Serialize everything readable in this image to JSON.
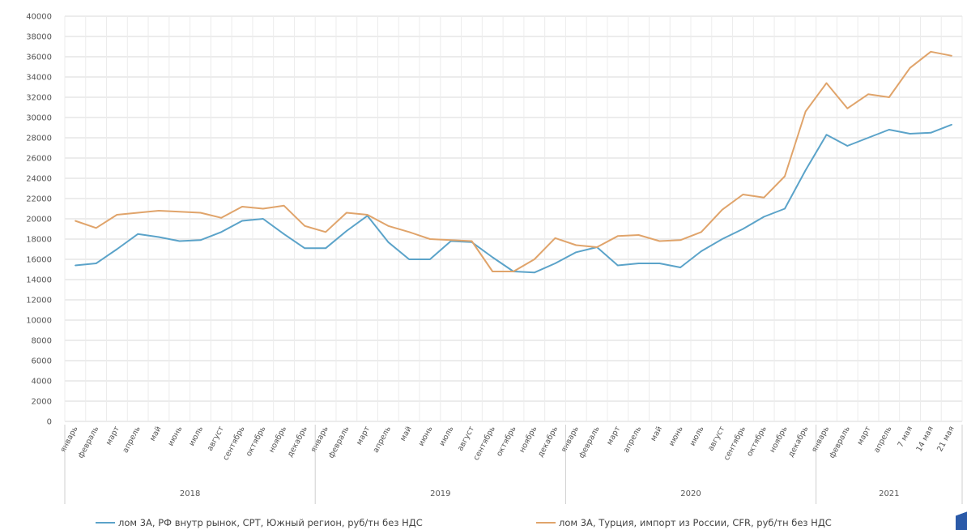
{
  "chart_data": {
    "type": "line",
    "title": "",
    "xlabel": "",
    "ylabel": "",
    "ylim": [
      0,
      40000
    ],
    "yticks": [
      0,
      2000,
      4000,
      6000,
      8000,
      10000,
      12000,
      14000,
      16000,
      18000,
      20000,
      22000,
      24000,
      26000,
      28000,
      30000,
      32000,
      34000,
      36000,
      38000,
      40000
    ],
    "grid": true,
    "legend_position": "bottom",
    "categories": [
      "январь",
      "февраль",
      "март",
      "апрель",
      "май",
      "июнь",
      "июль",
      "август",
      "сентябрь",
      "октябрь",
      "ноябрь",
      "декабрь",
      "январь",
      "февраль",
      "март",
      "апрель",
      "май",
      "июнь",
      "июль",
      "август",
      "сентябрь",
      "октябрь",
      "ноябрь",
      "декабрь",
      "январь",
      "февраль",
      "март",
      "апрель",
      "май",
      "июнь",
      "июль",
      "август",
      "сентябрь",
      "октябрь",
      "ноябрь",
      "декабрь",
      "январь",
      "февраль",
      "март",
      "апрель",
      "7 мая",
      "14 мая",
      "21 мая"
    ],
    "years": [
      {
        "label": "2018",
        "start": 0,
        "end": 11
      },
      {
        "label": "2019",
        "start": 12,
        "end": 23
      },
      {
        "label": "2020",
        "start": 24,
        "end": 35
      },
      {
        "label": "2021",
        "start": 36,
        "end": 42
      }
    ],
    "series": [
      {
        "name": "лом 3А, РФ внутр рынок, СРТ, Южный регион, руб/тн без НДС",
        "color": "#5ba3c9",
        "values": [
          15400,
          15600,
          17000,
          18500,
          18200,
          17800,
          17900,
          18700,
          19800,
          20000,
          18500,
          17100,
          17100,
          18800,
          20300,
          17700,
          16000,
          16000,
          17800,
          17700,
          16200,
          14800,
          14700,
          15600,
          16700,
          17200,
          15400,
          15600,
          15600,
          15200,
          16800,
          18000,
          19000,
          20200,
          21000,
          24800,
          28300,
          27200,
          28000,
          28800,
          28400,
          28500,
          29300
        ]
      },
      {
        "name": "лом 3А, Турция, импорт из России, CFR, руб/тн без НДС",
        "color": "#e0a46b",
        "values": [
          19800,
          19100,
          20400,
          20600,
          20800,
          20700,
          20600,
          20100,
          21200,
          21000,
          21300,
          19300,
          18700,
          20600,
          20400,
          19300,
          18700,
          18000,
          17900,
          17800,
          14800,
          14800,
          16000,
          18100,
          17400,
          17200,
          18300,
          18400,
          17800,
          17900,
          18700,
          20900,
          22400,
          22100,
          24200,
          30600,
          33400,
          30900,
          32300,
          32000,
          34900,
          36500,
          36100
        ]
      }
    ]
  }
}
